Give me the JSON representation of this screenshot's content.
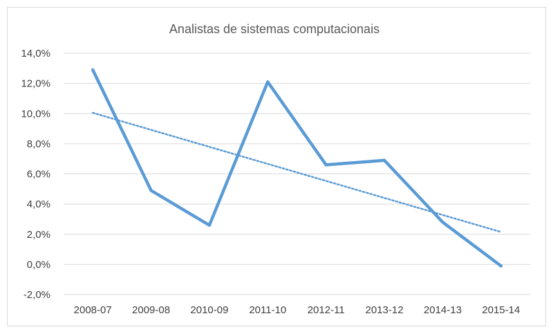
{
  "chart_data": {
    "type": "line",
    "title": "Analistas de sistemas computacionais",
    "xlabel": "",
    "ylabel": "",
    "categories": [
      "2008-07",
      "2009-08",
      "2010-09",
      "2011-10",
      "2012-11",
      "2013-12",
      "2014-13",
      "2015-14"
    ],
    "series": [
      {
        "values": [
          12.9,
          4.9,
          2.6,
          12.1,
          6.6,
          6.9,
          2.8,
          -0.1
        ],
        "color": "#5b9bd5"
      }
    ],
    "trendline": {
      "kind": "linear",
      "style": "dotted",
      "color": "#5b9bd5",
      "from": 10.05,
      "to": 2.15
    },
    "ylim": [
      -2,
      14
    ],
    "yticks": [
      "-2,0%",
      "0,0%",
      "2,0%",
      "4,0%",
      "6,0%",
      "8,0%",
      "10,0%",
      "12,0%",
      "14,0%"
    ],
    "ytick_values": [
      -2,
      0,
      2,
      4,
      6,
      8,
      10,
      12,
      14
    ],
    "grid": true,
    "legend": "none",
    "gridline_color": "#d9d9d9"
  }
}
